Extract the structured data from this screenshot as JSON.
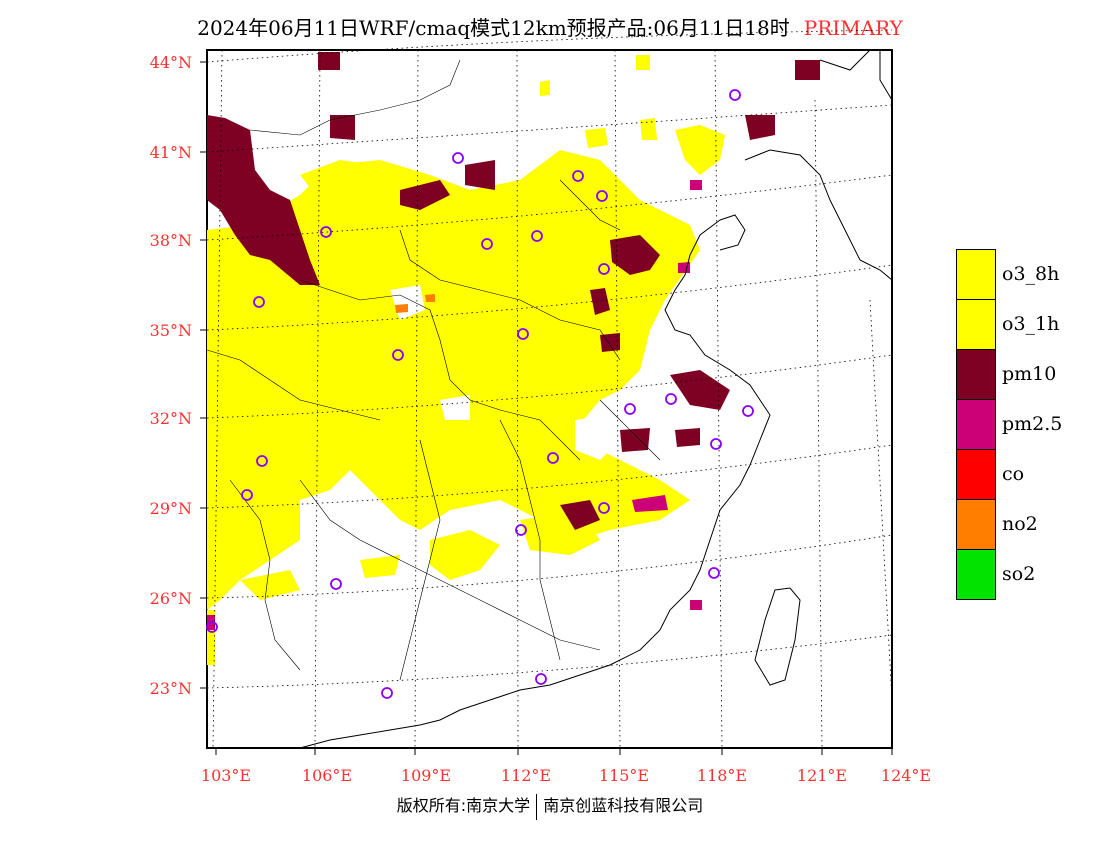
{
  "title": {
    "main": "2024年06月11日WRF/cmaq模式12km预报产品:06月11日18时",
    "tag": "PRIMARY"
  },
  "map": {
    "lat_labels": [
      "44°N",
      "41°N",
      "38°N",
      "35°N",
      "32°N",
      "29°N",
      "26°N",
      "23°N"
    ],
    "lon_labels": [
      "103°E",
      "106°E",
      "109°E",
      "112°E",
      "115°E",
      "118°E",
      "121°E",
      "124°E"
    ],
    "label_color": "#ff3030"
  },
  "legend": [
    {
      "label": "o3_8h",
      "color": "#ffff00"
    },
    {
      "label": "o3_1h",
      "color": "#ffff00"
    },
    {
      "label": "pm10",
      "color": "#7e0023"
    },
    {
      "label": "pm2.5",
      "color": "#cc0077"
    },
    {
      "label": "co",
      "color": "#ff0000"
    },
    {
      "label": "no2",
      "color": "#ff7e00"
    },
    {
      "label": "so2",
      "color": "#00e400"
    }
  ],
  "footer": {
    "left": "版权所有:南京大学",
    "right": "南京创蓝科技有限公司"
  }
}
